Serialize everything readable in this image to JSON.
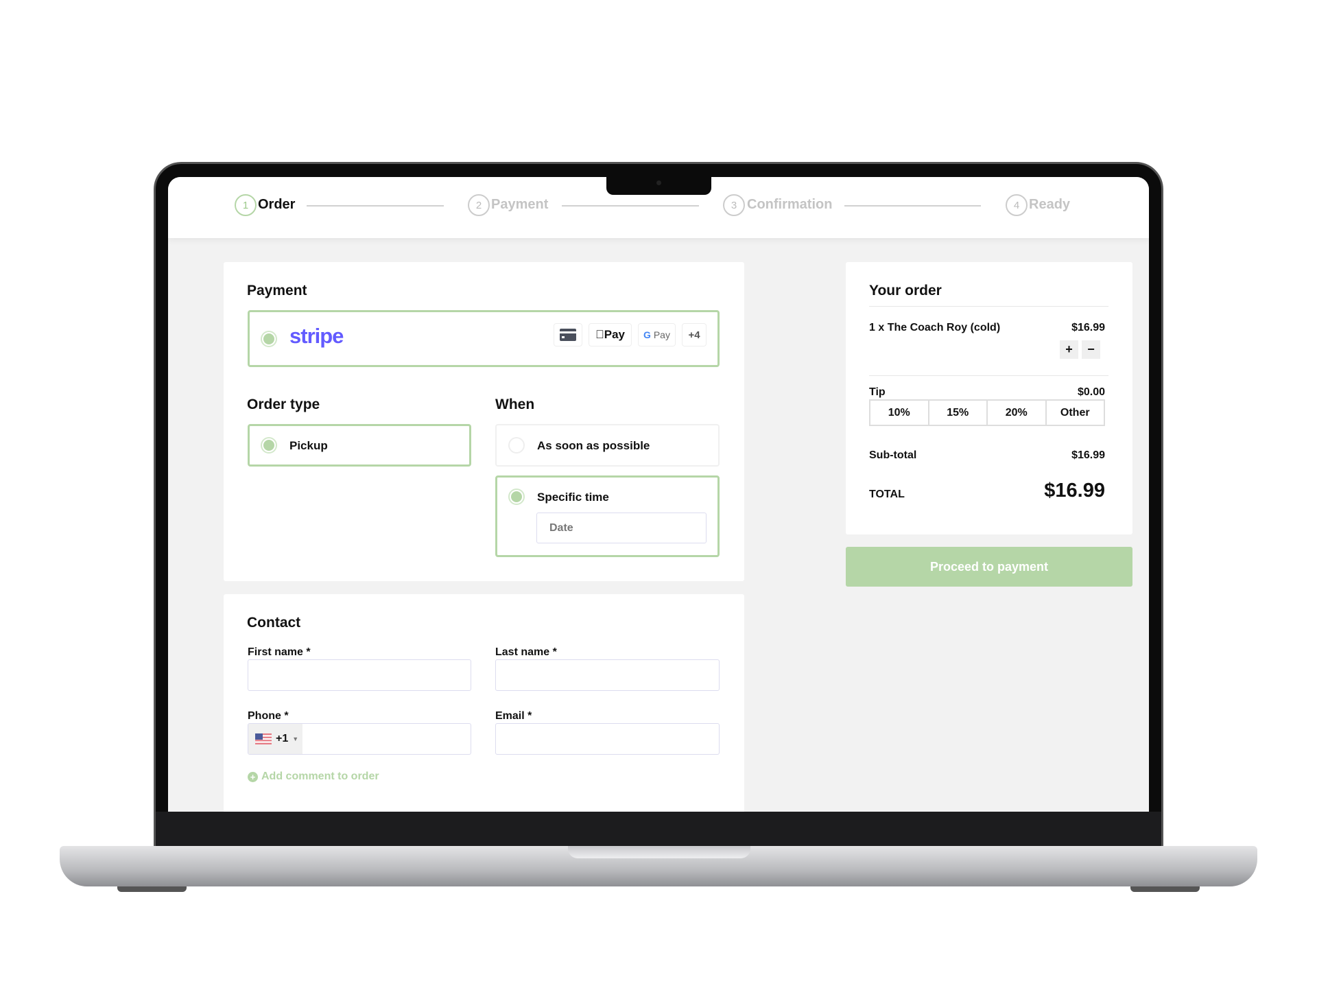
{
  "stepper": [
    {
      "n": "1",
      "label": "Order",
      "active": true
    },
    {
      "n": "2",
      "label": "Payment"
    },
    {
      "n": "3",
      "label": "Confirmation"
    },
    {
      "n": "4",
      "label": "Ready"
    }
  ],
  "payment": {
    "title": "Payment",
    "provider": "stripe",
    "methods": [
      "card-icon",
      "Pay",
      "Pay",
      "+4"
    ],
    "brand_color": "#635bff"
  },
  "order_type": {
    "title": "Order type",
    "option": "Pickup"
  },
  "when": {
    "title": "When",
    "asap": "As soon as possible",
    "specific": "Specific time",
    "date_placeholder": "Date"
  },
  "contact": {
    "title": "Contact",
    "first_name": "First name",
    "last_name": "Last name",
    "phone": "Phone",
    "email": "Email",
    "required": "*",
    "country_code": "+1",
    "add_comment": "Add comment to order"
  },
  "summary": {
    "title": "Your order",
    "item": "1 x The Coach Roy (cold)",
    "item_price": "$16.99",
    "plus": "+",
    "minus": "−",
    "tip_label": "Tip",
    "tip_value": "$0.00",
    "tips": [
      "10%",
      "15%",
      "20%",
      "Other"
    ],
    "subtotal_label": "Sub-total",
    "subtotal": "$16.99",
    "total_label": "TOTAL",
    "total": "$16.99"
  },
  "proceed": "Proceed to payment",
  "colors": {
    "accent": "#b5d6a7",
    "background": "#f2f2f2"
  }
}
